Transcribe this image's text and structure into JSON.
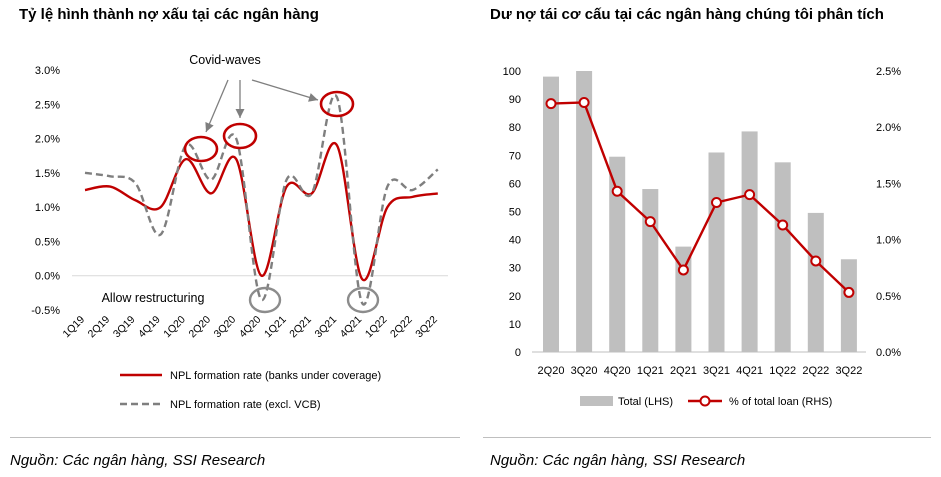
{
  "left_chart_title": "Tỷ lệ hình thành nợ xấu tại các ngân hàng",
  "right_chart_title": "Dư nợ tái cơ cấu tại các ngân hàng chúng tôi phân tích",
  "source_left": "Nguồn: Các ngân hàng, SSI Research",
  "source_right": "Nguồn: Các ngân hàng, SSI Research",
  "colors": {
    "red": "#c00000",
    "gray_line": "#7f7f7f",
    "bar": "#bfbfbf",
    "circle_gray": "#8c8c8c"
  },
  "chart_data": [
    {
      "type": "line",
      "title": "Tỷ lệ hình thành nợ xấu tại các ngân hàng",
      "categories": [
        "1Q19",
        "2Q19",
        "3Q19",
        "4Q19",
        "1Q20",
        "2Q20",
        "3Q20",
        "4Q20",
        "1Q21",
        "2Q21",
        "3Q21",
        "4Q21",
        "1Q22",
        "2Q22",
        "3Q22"
      ],
      "ylim": [
        -0.5,
        3.0
      ],
      "yticks": [
        "-0.5%",
        "0.0%",
        "0.5%",
        "1.0%",
        "1.5%",
        "2.0%",
        "2.5%",
        "3.0%"
      ],
      "series": [
        {
          "name": "NPL formation rate (banks under coverage)",
          "style": "solid",
          "color": "#c00000",
          "values": [
            1.25,
            1.3,
            1.1,
            1.0,
            1.7,
            1.2,
            1.7,
            0.0,
            1.3,
            1.2,
            1.9,
            -0.05,
            1.0,
            1.15,
            1.2
          ]
        },
        {
          "name": "NPL formation rate (excl. VCB)",
          "style": "dashed",
          "color": "#7f7f7f",
          "values": [
            1.5,
            1.45,
            1.35,
            0.6,
            1.9,
            1.4,
            2.0,
            -0.35,
            1.4,
            1.2,
            2.6,
            -0.4,
            1.3,
            1.25,
            1.55
          ]
        }
      ],
      "annotations": [
        "Covid-waves",
        "Allow restructuring"
      ],
      "grid": false,
      "legend_position": "bottom"
    },
    {
      "type": "bar",
      "title": "Dư nợ tái cơ cấu tại các ngân hàng chúng tôi phân tích",
      "categories": [
        "2Q20",
        "3Q20",
        "4Q20",
        "1Q21",
        "2Q21",
        "3Q21",
        "4Q21",
        "1Q22",
        "2Q22",
        "3Q22"
      ],
      "ylim_left": [
        0,
        100
      ],
      "ylim_right": [
        0,
        2.5
      ],
      "yticks_left": [
        "0",
        "10",
        "20",
        "30",
        "40",
        "50",
        "60",
        "70",
        "80",
        "90",
        "100"
      ],
      "yticks_right": [
        "0.0%",
        "0.5%",
        "1.0%",
        "1.5%",
        "2.0%",
        "2.5%"
      ],
      "series": [
        {
          "name": "Total (LHS)",
          "type": "bar",
          "axis": "left",
          "color": "#bfbfbf",
          "values": [
            98,
            100,
            69.5,
            58,
            37.5,
            71,
            78.5,
            67.5,
            49.5,
            33
          ]
        },
        {
          "name": "% of total loan (RHS)",
          "type": "line",
          "axis": "right",
          "color": "#c00000",
          "values": [
            2.21,
            2.22,
            1.43,
            1.16,
            0.73,
            1.33,
            1.4,
            1.13,
            0.81,
            0.53
          ]
        }
      ],
      "grid": false,
      "legend_position": "bottom"
    }
  ]
}
